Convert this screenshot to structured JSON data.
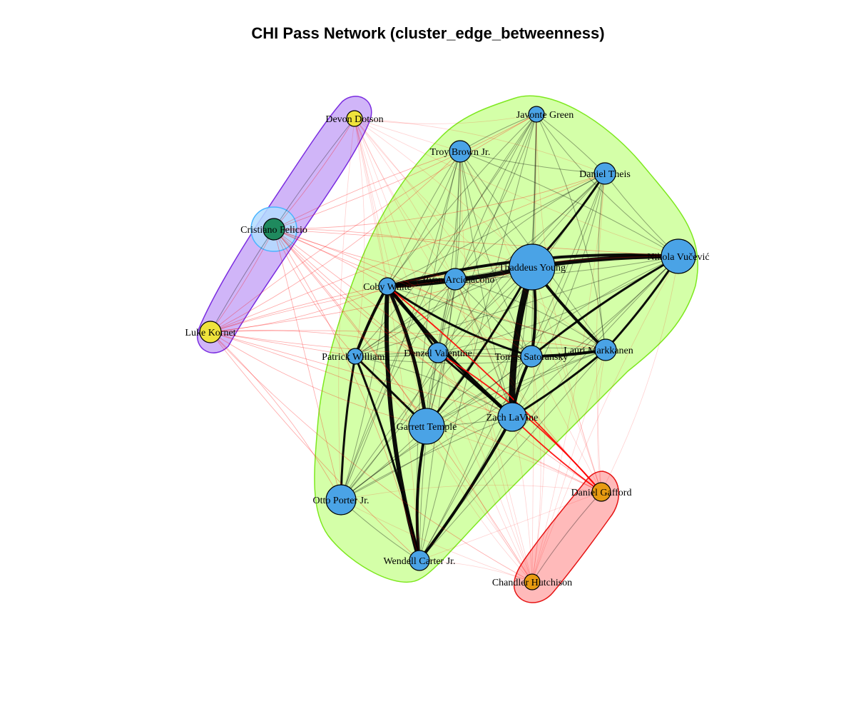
{
  "title": "CHI Pass Network (cluster_edge_betweenness)",
  "nodes": [
    {
      "id": "javonte",
      "label": "Javonte Green",
      "community": 1
    },
    {
      "id": "troy",
      "label": "Troy Brown Jr.",
      "community": 1
    },
    {
      "id": "theis",
      "label": "Daniel Theis",
      "community": 1
    },
    {
      "id": "vucevic",
      "label": "Nikola Vučević",
      "community": 1
    },
    {
      "id": "young",
      "label": "Thaddeus Young",
      "community": 1
    },
    {
      "id": "arcidiacono",
      "label": "Ryan Arcidiacono",
      "community": 1
    },
    {
      "id": "white",
      "label": "Coby White",
      "community": 1
    },
    {
      "id": "williams",
      "label": "Patrick Williams",
      "community": 1
    },
    {
      "id": "valentine",
      "label": "Denzel Valentine",
      "community": 1
    },
    {
      "id": "satoransky",
      "label": "Tomas Satoransky",
      "community": 1
    },
    {
      "id": "markkanen",
      "label": "Lauri Markkanen",
      "community": 1
    },
    {
      "id": "temple",
      "label": "Garrett Temple",
      "community": 1
    },
    {
      "id": "lavine",
      "label": "Zach LaVine",
      "community": 1
    },
    {
      "id": "porter",
      "label": "Otto Porter Jr.",
      "community": 1
    },
    {
      "id": "carter",
      "label": "Wendell Carter Jr.",
      "community": 1
    },
    {
      "id": "dotson",
      "label": "Devon Dotson",
      "community": 2
    },
    {
      "id": "kornet",
      "label": "Luke Kornet",
      "community": 2
    },
    {
      "id": "felicio",
      "label": "Cristiano Felicio",
      "community": 3
    },
    {
      "id": "gafford",
      "label": "Daniel Gafford",
      "community": 4
    },
    {
      "id": "hutchison",
      "label": "Chandler Hutchison",
      "community": 4
    }
  ],
  "communities": [
    {
      "id": 1,
      "node_color": "#4aa3e6",
      "fill": "#ccff99",
      "stroke": "#7ee81f"
    },
    {
      "id": 2,
      "node_color": "#efe33c",
      "fill": "#c8a8f7",
      "stroke": "#7a2be0"
    },
    {
      "id": 3,
      "node_color": "#1f8a5e",
      "fill": "#b3dcff",
      "stroke": "#49b4ff"
    },
    {
      "id": 4,
      "node_color": "#e89b12",
      "fill": "#ffaeae",
      "stroke": "#e61414"
    }
  ],
  "edge_colors": {
    "within": "#000000",
    "between": "#ff0000"
  }
}
